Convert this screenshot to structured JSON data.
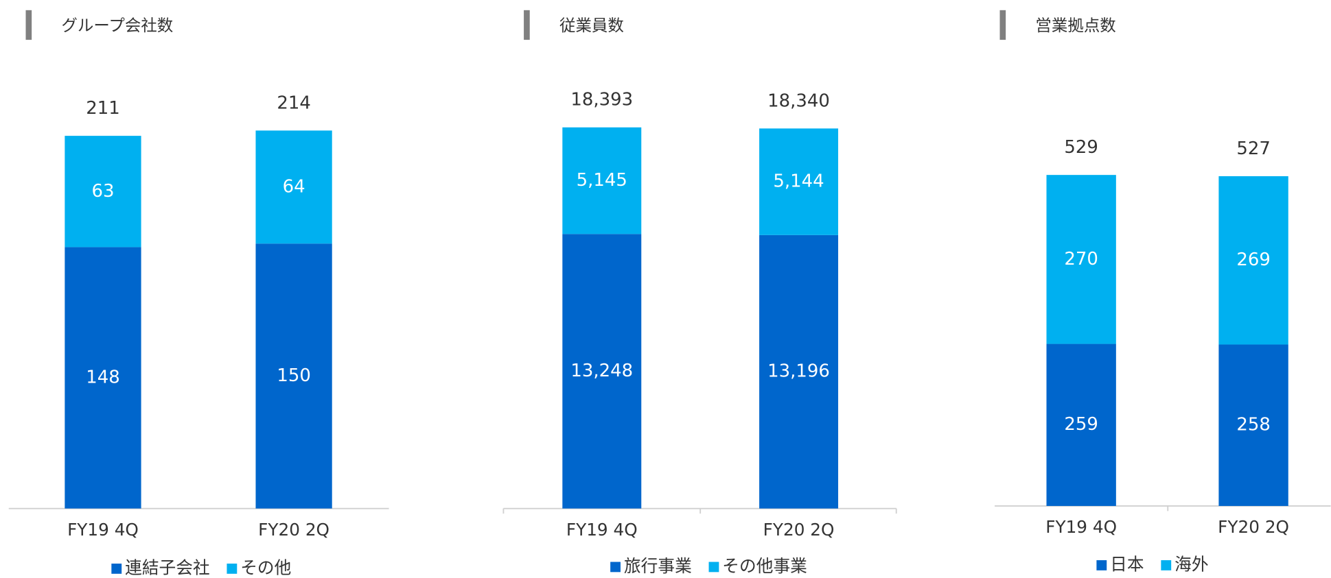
{
  "chart_data": [
    {
      "type": "bar",
      "stacked": true,
      "title": "グループ会社数",
      "categories": [
        "FY19 4Q",
        "FY20 2Q"
      ],
      "series": [
        {
          "name": "連結子会社",
          "color": "#0066cc",
          "values": [
            148,
            150
          ]
        },
        {
          "name": "その他",
          "color": "#00b0f0",
          "values": [
            63,
            64
          ]
        }
      ],
      "totals": [
        211,
        214
      ],
      "ylim": [
        0,
        250
      ]
    },
    {
      "type": "bar",
      "stacked": true,
      "title": "従業員数",
      "categories": [
        "FY19 4Q",
        "FY20 2Q"
      ],
      "series": [
        {
          "name": "旅行事業",
          "color": "#0066cc",
          "values": [
            13248,
            13196
          ],
          "value_labels": [
            "13,248",
            "13,196"
          ]
        },
        {
          "name": "その他事業",
          "color": "#00b0f0",
          "values": [
            5145,
            5144
          ],
          "value_labels": [
            "5,145",
            "5,144"
          ]
        }
      ],
      "totals": [
        18393,
        18340
      ],
      "total_labels": [
        "18,393",
        "18,340"
      ],
      "ylim": [
        0,
        20000
      ]
    },
    {
      "type": "bar",
      "stacked": true,
      "title": "営業拠点数",
      "categories": [
        "FY19 4Q",
        "FY20 2Q"
      ],
      "series": [
        {
          "name": "日本",
          "color": "#0066cc",
          "values": [
            259,
            258
          ]
        },
        {
          "name": "海外",
          "color": "#00b0f0",
          "values": [
            270,
            269
          ]
        }
      ],
      "totals": [
        529,
        527
      ],
      "ylim": [
        0,
        600
      ]
    }
  ]
}
